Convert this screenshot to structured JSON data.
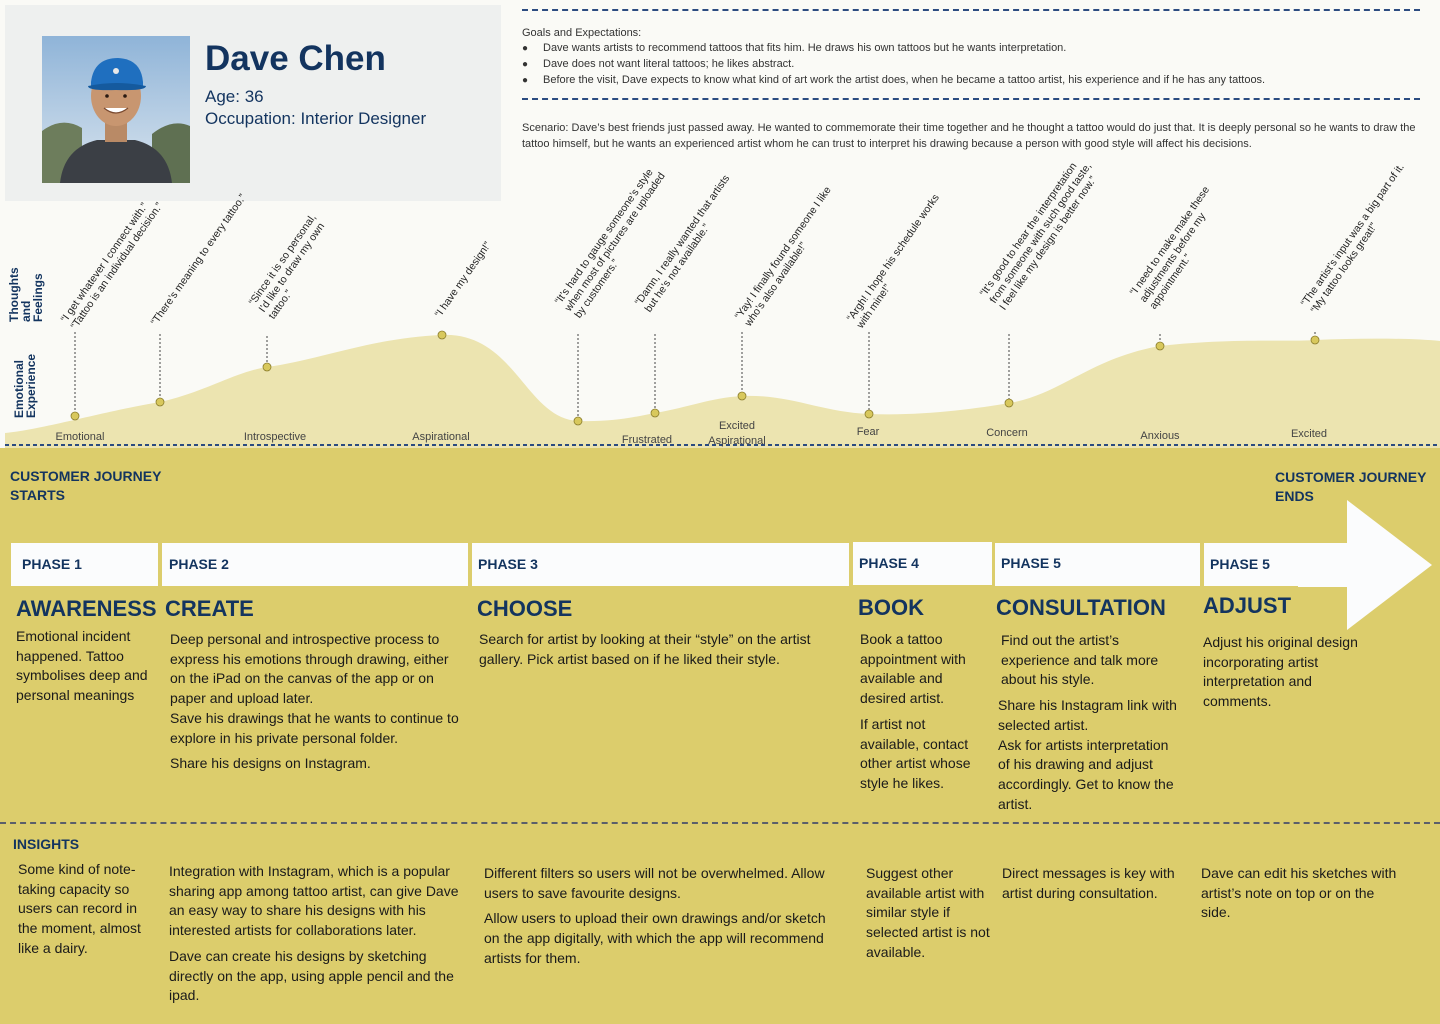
{
  "persona": {
    "name": "Dave Chen",
    "age": "Age: 36",
    "occupation": "Occupation: Interior Designer"
  },
  "goals": {
    "title": "Goals and Expectations:",
    "items": [
      "Dave wants artists to recommend tattoos that fits him. He draws his own tattoos but he wants interpretation.",
      "Dave does not want literal tattoos; he likes abstract.",
      "Before the visit, Dave expects to know what kind of art work the artist does, when he became a tattoo artist, his experience and if he has any tattoos."
    ]
  },
  "scenario": "Scenario: Dave’s best friends just passed away. He wanted to commemorate their time together and he thought a tattoo would do just that. It is deeply personal so he wants to draw the tattoo himself, but he wants an experienced artist whom he can trust to interpret his drawing because a person with good style will affect his decisions.",
  "side_labels": {
    "thoughts": [
      "Thoughts",
      "and",
      "Feelings"
    ],
    "emotional": [
      "Emotional",
      "Experience"
    ]
  },
  "emotion_points": [
    {
      "emotion": "Emotional",
      "quote": [
        "“I get whatever I connect with.”",
        "“Tattoo is an individual decision.”"
      ]
    },
    {
      "emotion": "",
      "quote": [
        "“There’s meaning to every tattoo.”"
      ]
    },
    {
      "emotion": "Introspective",
      "quote": [
        "“Since it is so personal,",
        "I’d like to draw my own",
        "tattoo.”"
      ]
    },
    {
      "emotion": "Aspirational",
      "quote": [
        "“I have my design!”"
      ]
    },
    {
      "emotion": "",
      "quote": [
        "“It’s hard to gauge someone’s style",
        "when most of pictures are uploaded",
        "by customers.”"
      ]
    },
    {
      "emotion": "Frustrated",
      "quote": [
        "“Damn, I really wanted that artists",
        "but he’s not available.”"
      ]
    },
    {
      "emotion": "Excited Aspirational",
      "quote": [
        "“Yay! I finally found someone I like",
        "who’s also available!”"
      ]
    },
    {
      "emotion": "Fear",
      "quote": [
        "“Argh! I hope his schedule works",
        "with mine!”"
      ]
    },
    {
      "emotion": "Concern",
      "quote": [
        "“It’s good to hear the interpretation",
        "from someone with such good taste,",
        "I feel like my design is better now.”"
      ]
    },
    {
      "emotion": "Anxious",
      "quote": [
        "“I need to make make these",
        "adjustments before my",
        "appointment.”"
      ]
    },
    {
      "emotion": "Excited",
      "quote": [
        "“The artist’s input was a big part of it.",
        "“My tattoo looks great!”"
      ]
    }
  ],
  "journey": {
    "start": "CUSTOMER JOURNEY STARTS",
    "end": "CUSTOMER JOURNEY ENDS"
  },
  "phases": [
    {
      "label": "PHASE 1",
      "title": "AWARENESS",
      "desc": [
        "Emotional incident happened. Tattoo symbolises deep and personal meanings"
      ],
      "insights": [
        "Some kind of note-taking capacity so users can record in the moment, almost like a dairy."
      ]
    },
    {
      "label": "PHASE 2",
      "title": "CREATE",
      "desc": [
        "Deep personal and introspective process to express his emotions through drawing, either on the iPad on the canvas of the app or on paper and upload later.",
        "Save his drawings that he wants to continue to explore in his private personal folder.",
        "Share his designs on Instagram."
      ],
      "insights": [
        "Integration with Instagram, which is a popular sharing app among tattoo artist, can give Dave an easy way to share his designs with his interested artists for collaborations later.",
        "Dave can create his designs by sketching directly on the app, using apple pencil and the ipad."
      ]
    },
    {
      "label": "PHASE 3",
      "title": "CHOOSE",
      "desc": [
        "Search for artist by looking at their “style” on the artist gallery. Pick artist based on if he liked their style."
      ],
      "insights": [
        "Different filters so users will not be overwhelmed. Allow users to save favourite designs.",
        "Allow users to upload their own drawings and/or sketch on the app digitally, with which the app will recommend artists for them."
      ]
    },
    {
      "label": "PHASE 4",
      "title": "BOOK",
      "desc": [
        "Book a tattoo appointment with available and desired artist.",
        "If artist not available, contact other artist whose style he likes."
      ],
      "insights": [
        "Suggest other available artist with similar style if selected artist is not available."
      ]
    },
    {
      "label": "PHASE 5",
      "title": "CONSULTATION",
      "desc": [
        "Find out the artist’s experience and talk more about his style.",
        "Share his Instagram link with selected artist.",
        "Ask for artists interpretation of his drawing and adjust accordingly. Get to know the artist."
      ],
      "insights": [
        "Direct messages is key with artist during consultation."
      ]
    },
    {
      "label": "PHASE 5",
      "title": "ADJUST",
      "desc": [
        "Adjust his original design incorporating artist interpretation and comments."
      ],
      "insights": [
        "Dave can edit his sketches with artist’s note on top or on the side."
      ]
    }
  ],
  "insights_heading": "INSIGHTS",
  "colors": {
    "background": "#dccd6c",
    "navy": "#13345f",
    "curve_fill": "#ece4b0",
    "point": "#d8c85c",
    "panel": "#fafaf6"
  }
}
